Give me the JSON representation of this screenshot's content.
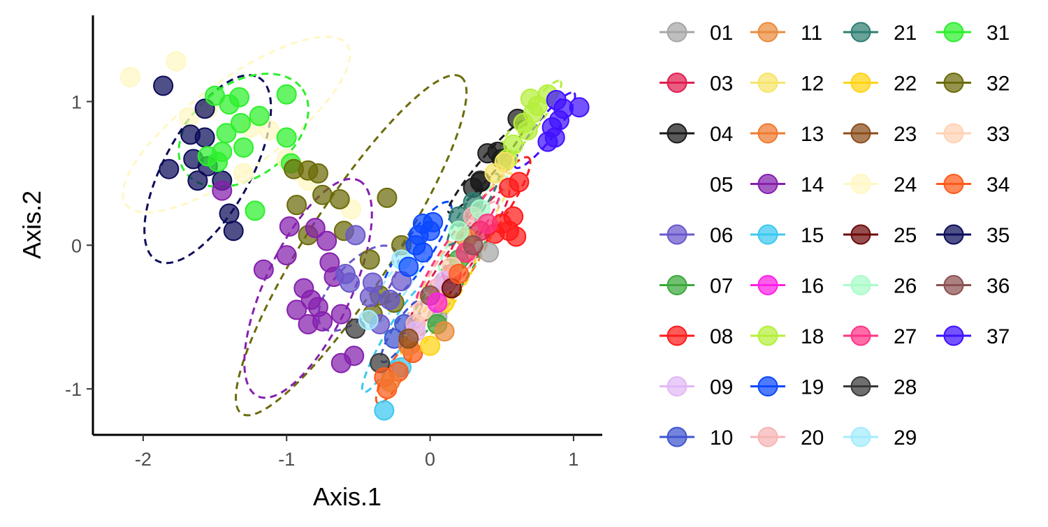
{
  "chart_data": {
    "type": "scatter",
    "title": "",
    "xlabel": "Axis.1",
    "ylabel": "Axis.2",
    "xlim": [
      -2.35,
      1.2
    ],
    "ylim": [
      -1.32,
      1.6
    ],
    "x_ticks": [
      {
        "v": -2,
        "label": "-2"
      },
      {
        "v": -1,
        "label": "-1"
      },
      {
        "v": 0,
        "label": "0"
      },
      {
        "v": 1,
        "label": "1"
      }
    ],
    "y_ticks": [
      {
        "v": -1,
        "label": "-1"
      },
      {
        "v": 0,
        "label": "0"
      },
      {
        "v": 1,
        "label": "1"
      }
    ],
    "grid": false,
    "legend_position": "right",
    "series": [
      {
        "name": "01",
        "color": "#a6a6a6"
      },
      {
        "name": "03",
        "color": "#e01e50"
      },
      {
        "name": "04",
        "color": "#1a1a1a"
      },
      {
        "name": "05",
        "color": null
      },
      {
        "name": "06",
        "color": "#6a58cc"
      },
      {
        "name": "07",
        "color": "#3aa83a"
      },
      {
        "name": "08",
        "color": "#ff1a1a"
      },
      {
        "name": "09",
        "color": "#e2b8f5"
      },
      {
        "name": "10",
        "color": "#3e55d0"
      },
      {
        "name": "11",
        "color": "#ea8c3c"
      },
      {
        "name": "12",
        "color": "#f7e468"
      },
      {
        "name": "13",
        "color": "#f07a30"
      },
      {
        "name": "14",
        "color": "#8520ad"
      },
      {
        "name": "15",
        "color": "#3cc8f0"
      },
      {
        "name": "16",
        "color": "#ff20e6"
      },
      {
        "name": "18",
        "color": "#b5ef3c"
      },
      {
        "name": "19",
        "color": "#0a48ff"
      },
      {
        "name": "20",
        "color": "#f7b4b4"
      },
      {
        "name": "21",
        "color": "#2e7e72"
      },
      {
        "name": "22",
        "color": "#ffd414"
      },
      {
        "name": "23",
        "color": "#8b4c1a"
      },
      {
        "name": "24",
        "color": "#fff7c4"
      },
      {
        "name": "25",
        "color": "#6e0a0a"
      },
      {
        "name": "26",
        "color": "#a8fcc8"
      },
      {
        "name": "27",
        "color": "#ff3385"
      },
      {
        "name": "28",
        "color": "#383838"
      },
      {
        "name": "29",
        "color": "#a4ecfc"
      },
      {
        "name": "31",
        "color": "#2cf02c"
      },
      {
        "name": "32",
        "color": "#6b6b0a"
      },
      {
        "name": "33",
        "color": "#ffd2b4"
      },
      {
        "name": "34",
        "color": "#ff5a1a"
      },
      {
        "name": "35",
        "color": "#0c0c5a"
      },
      {
        "name": "36",
        "color": "#8c5050"
      },
      {
        "name": "37",
        "color": "#4010ff"
      }
    ],
    "points": [
      {
        "s": "24",
        "x": -2.09,
        "y": 1.17
      },
      {
        "s": "24",
        "x": -1.77,
        "y": 1.28
      },
      {
        "s": "24",
        "x": -1.68,
        "y": 0.89
      },
      {
        "s": "24",
        "x": -1.55,
        "y": 0.95
      },
      {
        "s": "24",
        "x": -1.25,
        "y": 0.82
      },
      {
        "s": "24",
        "x": -1.12,
        "y": 0.8
      },
      {
        "s": "24",
        "x": -1.0,
        "y": 0.6
      },
      {
        "s": "24",
        "x": -0.9,
        "y": 0.52
      },
      {
        "s": "24",
        "x": -0.85,
        "y": 0.45
      },
      {
        "s": "24",
        "x": -0.55,
        "y": 0.25
      },
      {
        "s": "24",
        "x": -1.3,
        "y": 0.5
      },
      {
        "s": "35",
        "x": -1.86,
        "y": 1.11
      },
      {
        "s": "35",
        "x": -1.57,
        "y": 0.95
      },
      {
        "s": "35",
        "x": -1.67,
        "y": 0.77
      },
      {
        "s": "35",
        "x": -1.57,
        "y": 0.75
      },
      {
        "s": "35",
        "x": -1.65,
        "y": 0.6
      },
      {
        "s": "35",
        "x": -1.55,
        "y": 0.55
      },
      {
        "s": "35",
        "x": -1.62,
        "y": 0.45
      },
      {
        "s": "35",
        "x": -1.82,
        "y": 0.53
      },
      {
        "s": "35",
        "x": -1.45,
        "y": 0.45
      },
      {
        "s": "35",
        "x": -1.4,
        "y": 0.22
      },
      {
        "s": "35",
        "x": -1.37,
        "y": 0.1
      },
      {
        "s": "31",
        "x": -1.5,
        "y": 1.04
      },
      {
        "s": "31",
        "x": -1.4,
        "y": 0.98
      },
      {
        "s": "31",
        "x": -1.33,
        "y": 1.03
      },
      {
        "s": "31",
        "x": -1.0,
        "y": 1.05
      },
      {
        "s": "31",
        "x": -1.19,
        "y": 0.9
      },
      {
        "s": "31",
        "x": -1.32,
        "y": 0.85
      },
      {
        "s": "31",
        "x": -1.42,
        "y": 0.78
      },
      {
        "s": "31",
        "x": -1.3,
        "y": 0.68
      },
      {
        "s": "31",
        "x": -1.45,
        "y": 0.65
      },
      {
        "s": "31",
        "x": -1.55,
        "y": 0.62
      },
      {
        "s": "31",
        "x": -1.48,
        "y": 0.58
      },
      {
        "s": "31",
        "x": -1.0,
        "y": 0.75
      },
      {
        "s": "31",
        "x": -0.97,
        "y": 0.57
      },
      {
        "s": "31",
        "x": -1.22,
        "y": 0.24
      },
      {
        "s": "32",
        "x": -0.95,
        "y": 0.53
      },
      {
        "s": "32",
        "x": -0.85,
        "y": 0.52
      },
      {
        "s": "32",
        "x": -0.78,
        "y": 0.5
      },
      {
        "s": "32",
        "x": -0.75,
        "y": 0.35
      },
      {
        "s": "32",
        "x": -0.63,
        "y": 0.32
      },
      {
        "s": "32",
        "x": -0.93,
        "y": 0.28
      },
      {
        "s": "32",
        "x": -0.3,
        "y": 0.33
      },
      {
        "s": "32",
        "x": -0.85,
        "y": 0.07
      },
      {
        "s": "32",
        "x": -0.6,
        "y": 0.1
      },
      {
        "s": "32",
        "x": -0.2,
        "y": 0.0
      },
      {
        "s": "32",
        "x": -0.42,
        "y": -0.1
      },
      {
        "s": "32",
        "x": -0.25,
        "y": -0.4
      },
      {
        "s": "32",
        "x": -0.4,
        "y": -0.48
      },
      {
        "s": "32",
        "x": -0.35,
        "y": -0.35
      },
      {
        "s": "14",
        "x": -1.45,
        "y": 0.38
      },
      {
        "s": "14",
        "x": -0.98,
        "y": 0.13
      },
      {
        "s": "14",
        "x": -0.8,
        "y": 0.12
      },
      {
        "s": "14",
        "x": -0.72,
        "y": 0.03
      },
      {
        "s": "14",
        "x": -1.0,
        "y": -0.07
      },
      {
        "s": "14",
        "x": -0.7,
        "y": -0.12
      },
      {
        "s": "14",
        "x": -1.16,
        "y": -0.17
      },
      {
        "s": "14",
        "x": -0.67,
        "y": -0.22
      },
      {
        "s": "14",
        "x": -0.88,
        "y": -0.3
      },
      {
        "s": "14",
        "x": -0.83,
        "y": -0.38
      },
      {
        "s": "14",
        "x": -0.78,
        "y": -0.43
      },
      {
        "s": "14",
        "x": -0.93,
        "y": -0.45
      },
      {
        "s": "14",
        "x": -0.85,
        "y": -0.55
      },
      {
        "s": "14",
        "x": -0.75,
        "y": -0.53
      },
      {
        "s": "14",
        "x": -0.62,
        "y": -0.48
      },
      {
        "s": "14",
        "x": -0.53,
        "y": -0.77
      },
      {
        "s": "14",
        "x": -0.62,
        "y": -0.82
      },
      {
        "s": "06",
        "x": -0.52,
        "y": 0.07
      },
      {
        "s": "06",
        "x": -0.59,
        "y": -0.2
      },
      {
        "s": "06",
        "x": -0.56,
        "y": -0.26
      },
      {
        "s": "06",
        "x": -0.42,
        "y": -0.36
      },
      {
        "s": "06",
        "x": -0.4,
        "y": -0.26
      },
      {
        "s": "06",
        "x": -0.2,
        "y": -0.25
      },
      {
        "s": "06",
        "x": -0.28,
        "y": -0.38
      },
      {
        "s": "06",
        "x": -0.35,
        "y": -0.55
      },
      {
        "s": "28",
        "x": -0.52,
        "y": -0.58
      },
      {
        "s": "28",
        "x": -0.35,
        "y": -0.82
      },
      {
        "s": "28",
        "x": 0.35,
        "y": 0.45
      },
      {
        "s": "29",
        "x": -0.43,
        "y": -0.52
      },
      {
        "s": "29",
        "x": -0.2,
        "y": -0.1
      },
      {
        "s": "15",
        "x": -0.32,
        "y": -1.15
      },
      {
        "s": "15",
        "x": -0.2,
        "y": -0.85
      },
      {
        "s": "34",
        "x": -0.32,
        "y": -0.92
      },
      {
        "s": "34",
        "x": -0.3,
        "y": -1.0
      },
      {
        "s": "34",
        "x": -0.22,
        "y": -0.88
      },
      {
        "s": "34",
        "x": -0.12,
        "y": -0.75
      },
      {
        "s": "10",
        "x": -0.25,
        "y": -0.65
      },
      {
        "s": "10",
        "x": -0.18,
        "y": -0.55
      },
      {
        "s": "13",
        "x": -0.28,
        "y": -0.95
      },
      {
        "s": "13",
        "x": -0.15,
        "y": -0.7
      },
      {
        "s": "19",
        "x": -0.05,
        "y": 0.15
      },
      {
        "s": "19",
        "x": 0.02,
        "y": 0.16
      },
      {
        "s": "19",
        "x": -0.08,
        "y": 0.07
      },
      {
        "s": "19",
        "x": -0.1,
        "y": 0.0
      },
      {
        "s": "19",
        "x": -0.05,
        "y": -0.05
      },
      {
        "s": "19",
        "x": -0.15,
        "y": -0.15
      },
      {
        "s": "19",
        "x": 0.0,
        "y": 0.1
      },
      {
        "s": "04",
        "x": 0.61,
        "y": 0.88
      },
      {
        "s": "04",
        "x": 0.4,
        "y": 0.64
      },
      {
        "s": "04",
        "x": 0.47,
        "y": 0.65
      },
      {
        "s": "04",
        "x": 0.5,
        "y": 0.6
      },
      {
        "s": "04",
        "x": 0.35,
        "y": 0.44
      },
      {
        "s": "04",
        "x": 0.3,
        "y": 0.4
      },
      {
        "s": "18",
        "x": 0.7,
        "y": 1.02
      },
      {
        "s": "18",
        "x": 0.82,
        "y": 1.05
      },
      {
        "s": "18",
        "x": 0.75,
        "y": 0.97
      },
      {
        "s": "18",
        "x": 0.72,
        "y": 0.92
      },
      {
        "s": "18",
        "x": 0.65,
        "y": 0.85
      },
      {
        "s": "18",
        "x": 0.58,
        "y": 0.7
      },
      {
        "s": "18",
        "x": 0.54,
        "y": 0.6
      },
      {
        "s": "18",
        "x": 0.68,
        "y": 0.8
      },
      {
        "s": "37",
        "x": 0.88,
        "y": 1.01
      },
      {
        "s": "37",
        "x": 1.04,
        "y": 0.96
      },
      {
        "s": "37",
        "x": 0.93,
        "y": 0.95
      },
      {
        "s": "37",
        "x": 0.9,
        "y": 0.87
      },
      {
        "s": "37",
        "x": 0.85,
        "y": 0.82
      },
      {
        "s": "37",
        "x": 0.87,
        "y": 0.75
      },
      {
        "s": "37",
        "x": 0.82,
        "y": 0.72
      },
      {
        "s": "08",
        "x": 0.62,
        "y": 0.44
      },
      {
        "s": "08",
        "x": 0.55,
        "y": 0.4
      },
      {
        "s": "08",
        "x": 0.58,
        "y": 0.2
      },
      {
        "s": "08",
        "x": 0.5,
        "y": 0.15
      },
      {
        "s": "08",
        "x": 0.55,
        "y": 0.1
      },
      {
        "s": "08",
        "x": 0.6,
        "y": 0.06
      },
      {
        "s": "08",
        "x": 0.45,
        "y": 0.08
      },
      {
        "s": "01",
        "x": 0.41,
        "y": -0.05
      },
      {
        "s": "01",
        "x": 0.05,
        "y": -0.5
      },
      {
        "s": "21",
        "x": 0.3,
        "y": 0.3
      },
      {
        "s": "21",
        "x": 0.2,
        "y": 0.2
      },
      {
        "s": "12",
        "x": 0.52,
        "y": 0.58
      },
      {
        "s": "12",
        "x": 0.45,
        "y": 0.5
      },
      {
        "s": "22",
        "x": 0.0,
        "y": -0.7
      },
      {
        "s": "22",
        "x": 0.1,
        "y": -0.4
      },
      {
        "s": "20",
        "x": 0.3,
        "y": 0.2
      },
      {
        "s": "20",
        "x": 0.05,
        "y": -0.3
      },
      {
        "s": "20",
        "x": -0.1,
        "y": -0.55
      },
      {
        "s": "03",
        "x": 0.15,
        "y": -0.2
      },
      {
        "s": "03",
        "x": 0.35,
        "y": 0.1
      },
      {
        "s": "07",
        "x": 0.05,
        "y": -0.55
      },
      {
        "s": "07",
        "x": 0.2,
        "y": -0.1
      },
      {
        "s": "11",
        "x": 0.1,
        "y": -0.6
      },
      {
        "s": "11",
        "x": 0.25,
        "y": 0.05
      },
      {
        "s": "26",
        "x": 0.2,
        "y": 0.1
      },
      {
        "s": "26",
        "x": 0.35,
        "y": 0.25
      },
      {
        "s": "27",
        "x": 0.25,
        "y": -0.05
      },
      {
        "s": "27",
        "x": 0.4,
        "y": 0.15
      },
      {
        "s": "33",
        "x": -0.05,
        "y": -0.45
      },
      {
        "s": "33",
        "x": 0.15,
        "y": -0.15
      },
      {
        "s": "36",
        "x": 0.0,
        "y": -0.35
      },
      {
        "s": "36",
        "x": 0.3,
        "y": 0.0
      },
      {
        "s": "09",
        "x": -0.1,
        "y": -0.6
      },
      {
        "s": "09",
        "x": 0.1,
        "y": -0.25
      },
      {
        "s": "16",
        "x": 0.05,
        "y": -0.4
      },
      {
        "s": "23",
        "x": -0.15,
        "y": -0.65
      },
      {
        "s": "25",
        "x": 0.15,
        "y": -0.3
      },
      {
        "s": "34",
        "x": 0.2,
        "y": -0.2
      }
    ],
    "ellipses": [
      {
        "s": "24",
        "cx": -1.35,
        "cy": 0.84,
        "rx": 0.95,
        "ry": 0.31,
        "angle": -36
      },
      {
        "s": "35",
        "cx": -1.55,
        "cy": 0.53,
        "rx": 0.73,
        "ry": 0.3,
        "angle": -61
      },
      {
        "s": "31",
        "cx": -1.3,
        "cy": 0.8,
        "rx": 0.5,
        "ry": 0.33,
        "angle": -35
      },
      {
        "s": "32",
        "cx": -0.55,
        "cy": 0.0,
        "rx": 1.4,
        "ry": 0.3,
        "angle": -57
      },
      {
        "s": "14",
        "cx": -0.85,
        "cy": -0.3,
        "rx": 0.83,
        "ry": 0.3,
        "angle": -65
      },
      {
        "s": "06",
        "cx": -0.5,
        "cy": -0.3,
        "rx": 0.37,
        "ry": 0.17,
        "angle": -48
      },
      {
        "s": "19",
        "cx": -0.1,
        "cy": -0.05,
        "rx": 0.42,
        "ry": 0.1,
        "angle": -56
      },
      {
        "s": "04",
        "cx": 0.4,
        "cy": 0.55,
        "rx": 0.42,
        "ry": 0.06,
        "angle": -50
      },
      {
        "s": "18",
        "cx": 0.68,
        "cy": 0.85,
        "rx": 0.37,
        "ry": 0.07,
        "angle": -52
      },
      {
        "s": "37",
        "cx": 0.8,
        "cy": 0.8,
        "rx": 0.33,
        "ry": 0.07,
        "angle": -52
      },
      {
        "s": "08",
        "cx": 0.4,
        "cy": 0.2,
        "rx": 0.5,
        "ry": 0.1,
        "angle": -55
      },
      {
        "s": "15",
        "cx": -0.25,
        "cy": -0.65,
        "rx": 0.43,
        "ry": 0.07,
        "angle": -60
      },
      {
        "s": "34",
        "cx": -0.25,
        "cy": -0.9,
        "rx": 0.23,
        "ry": 0.06,
        "angle": -60
      },
      {
        "s": "03",
        "cx": 0.2,
        "cy": -0.1,
        "rx": 0.6,
        "ry": 0.09,
        "angle": -55
      },
      {
        "s": "07",
        "cx": 0.1,
        "cy": -0.3,
        "rx": 0.5,
        "ry": 0.09,
        "angle": -55
      },
      {
        "s": "12",
        "cx": 0.25,
        "cy": 0.05,
        "rx": 0.55,
        "ry": 0.08,
        "angle": -55
      },
      {
        "s": "22",
        "cx": 0.05,
        "cy": -0.45,
        "rx": 0.45,
        "ry": 0.07,
        "angle": -55
      },
      {
        "s": "20",
        "cx": 0.15,
        "cy": -0.15,
        "rx": 0.55,
        "ry": 0.1,
        "angle": -55
      },
      {
        "s": "26",
        "cx": 0.3,
        "cy": 0.15,
        "rx": 0.4,
        "ry": 0.07,
        "angle": -55
      },
      {
        "s": "27",
        "cx": 0.2,
        "cy": 0.0,
        "rx": 0.5,
        "ry": 0.08,
        "angle": -55
      },
      {
        "s": "29",
        "cx": -0.25,
        "cy": -0.3,
        "rx": 0.35,
        "ry": 0.08,
        "angle": -55
      },
      {
        "s": "10",
        "cx": -0.2,
        "cy": -0.6,
        "rx": 0.25,
        "ry": 0.06,
        "angle": -58
      },
      {
        "s": "21",
        "cx": 0.3,
        "cy": 0.25,
        "rx": 0.3,
        "ry": 0.06,
        "angle": -55
      },
      {
        "s": "11",
        "cx": 0.15,
        "cy": -0.25,
        "rx": 0.5,
        "ry": 0.08,
        "angle": -55
      }
    ]
  }
}
